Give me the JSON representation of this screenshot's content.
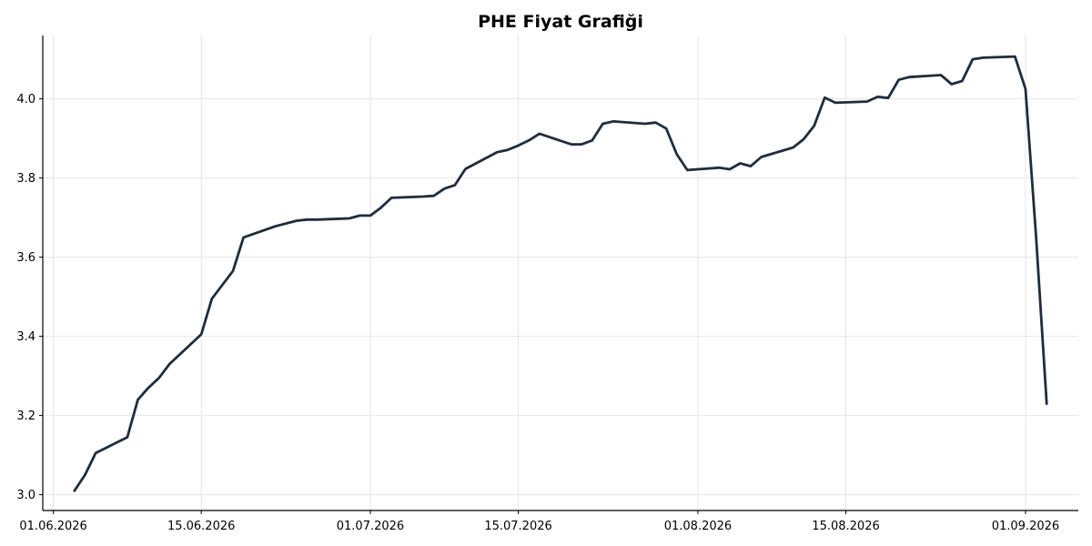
{
  "chart_data": {
    "type": "line",
    "title": "PHE Fiyat Grafiği",
    "xlabel": "",
    "ylabel": "",
    "x_axis_type": "date",
    "xlim": [
      "2026-05-31",
      "2026-09-06"
    ],
    "ylim": [
      2.96,
      4.16
    ],
    "yticks": [
      3.0,
      3.2,
      3.4,
      3.6,
      3.8,
      4.0
    ],
    "ytick_labels": [
      "3.0",
      "3.2",
      "3.4",
      "3.6",
      "3.8",
      "4.0"
    ],
    "xticks": [
      "2026-06-01",
      "2026-06-15",
      "2026-07-01",
      "2026-07-15",
      "2026-08-01",
      "2026-08-15",
      "2026-09-01"
    ],
    "xtick_labels": [
      "01.06.2026",
      "15.06.2026",
      "01.07.2026",
      "15.07.2026",
      "01.08.2026",
      "15.08.2026",
      "01.09.2026"
    ],
    "grid": true,
    "legend": "none",
    "color": "#1f2d3d",
    "series": [
      {
        "x": [
          "2026-06-03",
          "2026-06-04",
          "2026-06-05",
          "2026-06-08",
          "2026-06-09",
          "2026-06-10",
          "2026-06-11",
          "2026-06-12",
          "2026-06-15",
          "2026-06-16",
          "2026-06-18",
          "2026-06-19",
          "2026-06-22",
          "2026-06-24",
          "2026-06-25",
          "2026-06-26",
          "2026-06-29",
          "2026-06-30",
          "2026-07-01",
          "2026-07-02",
          "2026-07-03",
          "2026-07-06",
          "2026-07-07",
          "2026-07-08",
          "2026-07-09",
          "2026-07-10",
          "2026-07-13",
          "2026-07-14",
          "2026-07-15",
          "2026-07-16",
          "2026-07-17",
          "2026-07-20",
          "2026-07-21",
          "2026-07-22",
          "2026-07-23",
          "2026-07-24",
          "2026-07-27",
          "2026-07-28",
          "2026-07-29",
          "2026-07-30",
          "2026-07-31",
          "2026-08-03",
          "2026-08-04",
          "2026-08-05",
          "2026-08-06",
          "2026-08-07",
          "2026-08-10",
          "2026-08-11",
          "2026-08-12",
          "2026-08-13",
          "2026-08-14",
          "2026-08-17",
          "2026-08-18",
          "2026-08-19",
          "2026-08-20",
          "2026-08-21",
          "2026-08-24",
          "2026-08-25",
          "2026-08-26",
          "2026-08-27",
          "2026-08-28",
          "2026-08-31",
          "2026-09-01",
          "2026-09-02",
          "2026-09-03"
        ],
        "y": [
          3.01,
          3.05,
          3.105,
          3.145,
          3.24,
          3.27,
          3.295,
          3.33,
          3.405,
          3.495,
          3.565,
          3.65,
          3.678,
          3.692,
          3.695,
          3.695,
          3.698,
          3.705,
          3.705,
          3.725,
          3.75,
          3.753,
          3.755,
          3.773,
          3.782,
          3.823,
          3.865,
          3.871,
          3.882,
          3.895,
          3.912,
          3.885,
          3.885,
          3.895,
          3.937,
          3.943,
          3.937,
          3.94,
          3.925,
          3.86,
          3.82,
          3.826,
          3.822,
          3.837,
          3.83,
          3.853,
          3.877,
          3.898,
          3.932,
          4.003,
          3.99,
          3.993,
          4.005,
          4.002,
          4.048,
          4.055,
          4.06,
          4.037,
          4.045,
          4.1,
          4.104,
          4.107,
          4.025,
          3.65,
          3.23
        ]
      }
    ]
  }
}
